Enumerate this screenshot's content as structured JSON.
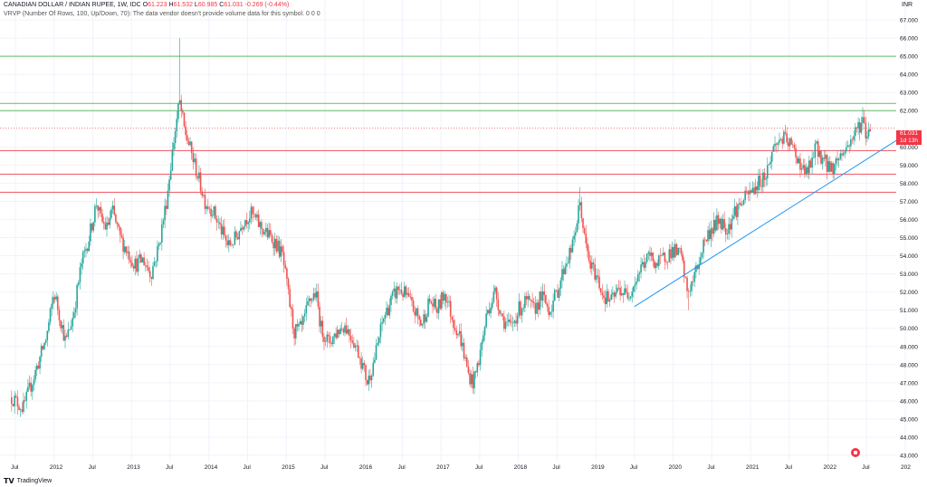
{
  "header": {
    "symbol": "CANADIAN DOLLAR / INDIAN RUPEE, 1W, IDC",
    "o_label": "O",
    "o_value": "61.223",
    "h_label": "H",
    "h_value": "61.532",
    "l_label": "L",
    "l_value": "60.985",
    "c_label": "C",
    "c_value": "61.031",
    "change": "-0.269 (-0.44%)",
    "indicator": "VRVP (Number Of Rows, 100, Up/Down, 70): The data vendor doesn't provide volume data for this symbol.",
    "indicator_values": "0  0  0"
  },
  "axis": {
    "unit": "INR"
  },
  "badge": {
    "price": "61.031",
    "countdown": "1d 13h"
  },
  "footer": {
    "brand": "TradingView"
  },
  "colors": {
    "up": "#26a69a",
    "down": "#ef5350",
    "hline_green": "#4caf50",
    "hline_red": "#f23645",
    "trend": "#2196f3"
  },
  "chart_data": {
    "type": "candlestick",
    "interval": "1W",
    "ylim": [
      43,
      68
    ],
    "y_ticks": [
      "43.000",
      "44.000",
      "45.000",
      "46.000",
      "47.000",
      "48.000",
      "49.000",
      "50.000",
      "51.000",
      "52.000",
      "53.000",
      "54.000",
      "55.000",
      "56.000",
      "57.000",
      "58.000",
      "59.000",
      "60.000",
      "62.000",
      "63.000",
      "64.000",
      "65.000",
      "66.000",
      "67.000"
    ],
    "x_ticks": [
      "Jul",
      "2012",
      "Jul",
      "2013",
      "Jul",
      "2014",
      "Jul",
      "2015",
      "Jul",
      "2016",
      "Jul",
      "2017",
      "Jul",
      "2018",
      "Jul",
      "2019",
      "Jul",
      "2020",
      "Jul",
      "2021",
      "Jul",
      "2022",
      "Jul",
      "202"
    ],
    "horizontal_lines": [
      {
        "y": 65.0,
        "color": "green"
      },
      {
        "y": 62.4,
        "color": "green"
      },
      {
        "y": 62.0,
        "color": "green"
      },
      {
        "y": 59.8,
        "color": "red"
      },
      {
        "y": 58.5,
        "color": "red"
      },
      {
        "y": 57.5,
        "color": "red"
      }
    ],
    "trendline": {
      "from": {
        "t": 2019.5,
        "y": 51.2
      },
      "to": {
        "t": 2022.9,
        "y": 60.4
      }
    },
    "price_path": [
      [
        2011.45,
        46.2
      ],
      [
        2011.6,
        45.6
      ],
      [
        2011.75,
        47.5
      ],
      [
        2011.9,
        49.5
      ],
      [
        2012.0,
        52.0
      ],
      [
        2012.08,
        50.5
      ],
      [
        2012.15,
        49.2
      ],
      [
        2012.25,
        50.8
      ],
      [
        2012.35,
        53.5
      ],
      [
        2012.45,
        55.0
      ],
      [
        2012.55,
        57.0
      ],
      [
        2012.6,
        56.0
      ],
      [
        2012.68,
        55.5
      ],
      [
        2012.75,
        56.5
      ],
      [
        2012.85,
        55.0
      ],
      [
        2012.95,
        54.2
      ],
      [
        2013.05,
        53.5
      ],
      [
        2013.15,
        53.8
      ],
      [
        2013.25,
        53.0
      ],
      [
        2013.35,
        54.5
      ],
      [
        2013.45,
        57.0
      ],
      [
        2013.55,
        60.5
      ],
      [
        2013.62,
        62.5
      ],
      [
        2013.68,
        61.0
      ],
      [
        2013.75,
        60.0
      ],
      [
        2013.85,
        58.5
      ],
      [
        2013.95,
        57.0
      ],
      [
        2014.05,
        56.5
      ],
      [
        2014.15,
        55.5
      ],
      [
        2014.25,
        54.5
      ],
      [
        2014.35,
        55.0
      ],
      [
        2014.45,
        56.0
      ],
      [
        2014.55,
        56.3
      ],
      [
        2014.65,
        55.7
      ],
      [
        2014.75,
        55.2
      ],
      [
        2014.85,
        54.8
      ],
      [
        2014.95,
        54.0
      ],
      [
        2015.02,
        52.0
      ],
      [
        2015.1,
        49.8
      ],
      [
        2015.2,
        50.0
      ],
      [
        2015.3,
        51.5
      ],
      [
        2015.38,
        52.0
      ],
      [
        2015.45,
        50.0
      ],
      [
        2015.55,
        49.2
      ],
      [
        2015.65,
        49.8
      ],
      [
        2015.75,
        50.2
      ],
      [
        2015.85,
        49.5
      ],
      [
        2015.95,
        48.5
      ],
      [
        2016.05,
        47.0
      ],
      [
        2016.15,
        48.5
      ],
      [
        2016.25,
        50.5
      ],
      [
        2016.35,
        51.5
      ],
      [
        2016.45,
        52.2
      ],
      [
        2016.55,
        51.8
      ],
      [
        2016.65,
        51.0
      ],
      [
        2016.75,
        50.2
      ],
      [
        2016.85,
        51.5
      ],
      [
        2016.95,
        51.0
      ],
      [
        2017.05,
        52.0
      ],
      [
        2017.15,
        50.5
      ],
      [
        2017.25,
        49.5
      ],
      [
        2017.35,
        47.5
      ],
      [
        2017.42,
        47.0
      ],
      [
        2017.5,
        48.5
      ],
      [
        2017.6,
        51.0
      ],
      [
        2017.7,
        52.0
      ],
      [
        2017.8,
        50.5
      ],
      [
        2017.9,
        50.0
      ],
      [
        2018.0,
        51.0
      ],
      [
        2018.1,
        51.5
      ],
      [
        2018.2,
        51.0
      ],
      [
        2018.3,
        51.8
      ],
      [
        2018.4,
        51.0
      ],
      [
        2018.5,
        52.0
      ],
      [
        2018.6,
        53.5
      ],
      [
        2018.7,
        54.5
      ],
      [
        2018.8,
        57.0
      ],
      [
        2018.85,
        55.0
      ],
      [
        2018.92,
        53.5
      ],
      [
        2019.0,
        53.0
      ],
      [
        2019.1,
        51.8
      ],
      [
        2019.2,
        51.5
      ],
      [
        2019.3,
        52.2
      ],
      [
        2019.4,
        51.8
      ],
      [
        2019.5,
        52.5
      ],
      [
        2019.6,
        53.5
      ],
      [
        2019.7,
        54.0
      ],
      [
        2019.8,
        53.5
      ],
      [
        2019.9,
        54.0
      ],
      [
        2020.0,
        54.3
      ],
      [
        2020.1,
        54.0
      ],
      [
        2020.18,
        52.0
      ],
      [
        2020.25,
        52.5
      ],
      [
        2020.32,
        53.5
      ],
      [
        2020.4,
        54.8
      ],
      [
        2020.5,
        55.5
      ],
      [
        2020.6,
        56.0
      ],
      [
        2020.7,
        55.5
      ],
      [
        2020.8,
        56.5
      ],
      [
        2020.9,
        57.0
      ],
      [
        2021.0,
        57.5
      ],
      [
        2021.1,
        58.0
      ],
      [
        2021.2,
        58.5
      ],
      [
        2021.3,
        60.0
      ],
      [
        2021.4,
        60.5
      ],
      [
        2021.5,
        60.2
      ],
      [
        2021.6,
        59.5
      ],
      [
        2021.7,
        58.5
      ],
      [
        2021.78,
        59.0
      ],
      [
        2021.85,
        60.0
      ],
      [
        2021.95,
        59.2
      ],
      [
        2022.05,
        58.8
      ],
      [
        2022.15,
        59.5
      ],
      [
        2022.25,
        60.0
      ],
      [
        2022.35,
        60.8
      ],
      [
        2022.45,
        61.5
      ],
      [
        2022.5,
        60.5
      ],
      [
        2022.55,
        61.3
      ]
    ],
    "spikes": [
      {
        "t": 2013.62,
        "high": 66.0
      },
      {
        "t": 2018.8,
        "high": 57.8
      },
      {
        "t": 2020.2,
        "low": 51.0
      },
      {
        "t": 2022.45,
        "high": 62.2
      }
    ],
    "last_price": 61.031
  }
}
